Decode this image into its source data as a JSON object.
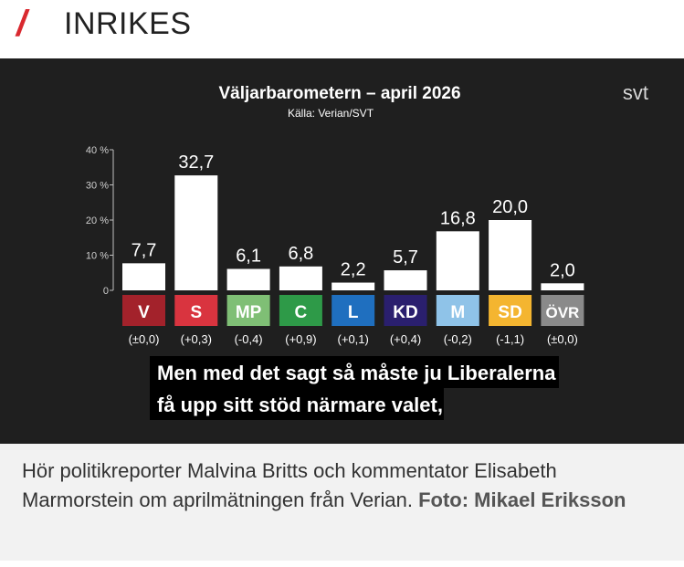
{
  "section": {
    "slash": "/",
    "title": "INRIKES"
  },
  "video": {
    "channel_logo": "svt",
    "subtitle_lines": [
      "Men med det sagt så måste ju Liberalerna",
      "få upp sitt stöd närmare valet,"
    ]
  },
  "chart_data": {
    "type": "bar",
    "title": "Väljarbarometern – april 2026",
    "subtitle": "Källa: Verian/SVT",
    "xlabel": "",
    "ylabel": "",
    "ylim": [
      0,
      40
    ],
    "yticks": [
      "0",
      "10 %",
      "20 %",
      "30 %",
      "40 %"
    ],
    "grid": false,
    "categories": [
      "V",
      "S",
      "MP",
      "C",
      "L",
      "KD",
      "M",
      "SD",
      "ÖVR"
    ],
    "values": [
      7.7,
      32.7,
      6.1,
      6.8,
      2.2,
      5.7,
      16.8,
      20.0,
      2.0
    ],
    "value_labels": [
      "7,7",
      "32,7",
      "6,1",
      "6,8",
      "2,2",
      "5,7",
      "16,8",
      "20,0",
      "2,0"
    ],
    "changes": [
      "(±0,0)",
      "(+0,3)",
      "(-0,4)",
      "(+0,9)",
      "(+0,1)",
      "(+0,4)",
      "(-0,2)",
      "(-1,1)",
      "(±0,0)"
    ],
    "party_colors": [
      "#a3222b",
      "#d9343f",
      "#7fbf75",
      "#2e9a48",
      "#1f6fbf",
      "#2a1f6e",
      "#8fc3e8",
      "#f4b530",
      "#8a8a8a"
    ]
  },
  "caption": {
    "text": "Hör politikreporter Malvina Britts och kommentator Elisabeth Marmorstein om aprilmätningen från Verian.",
    "credit": "Foto: Mikael Eriksson"
  }
}
